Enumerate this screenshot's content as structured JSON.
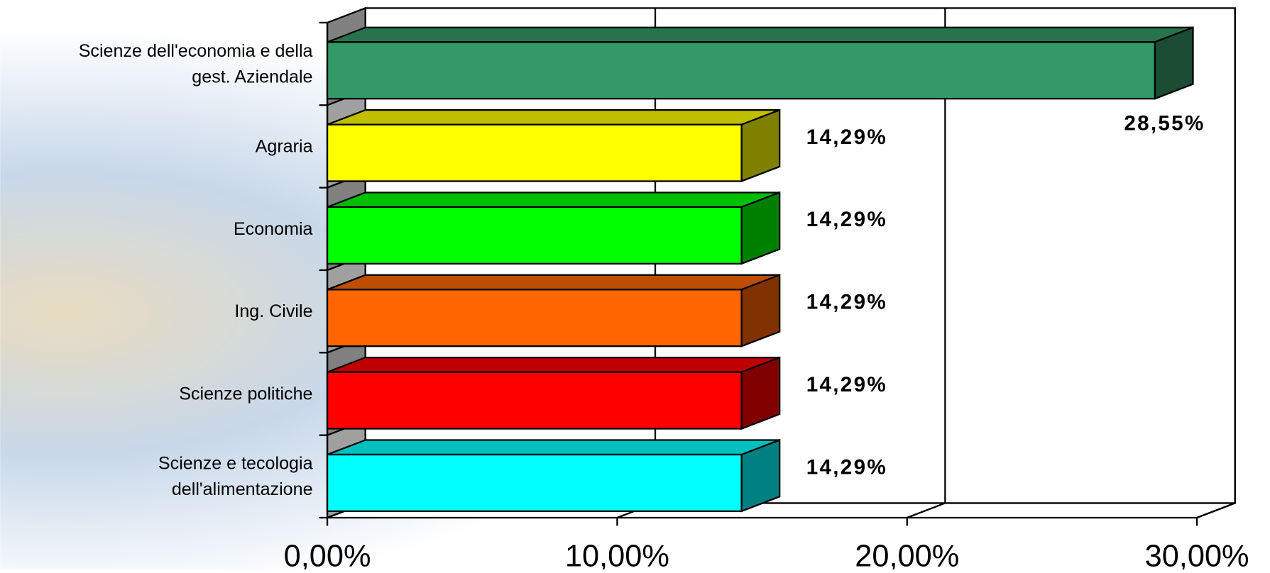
{
  "chart_data": {
    "type": "bar",
    "orientation": "horizontal",
    "three_d": true,
    "categories": [
      "Scienze dell'economia e della gest. Aziendale",
      "Agraria",
      "Economia",
      "Ing. Civile",
      "Scienze politiche",
      "Scienze e tecologia dell'alimentazione"
    ],
    "values": [
      28.55,
      14.29,
      14.29,
      14.29,
      14.29,
      14.29
    ],
    "value_labels": [
      "28,55%",
      "14,29%",
      "14,29%",
      "14,29%",
      "14,29%",
      "14,29%"
    ],
    "colors": [
      "#339966",
      "#ffff00",
      "#00ff00",
      "#ff6600",
      "#ff0000",
      "#00ffff"
    ],
    "xlim": [
      0,
      30
    ],
    "xticks": [
      {
        "value": 0,
        "label": "0,00%"
      },
      {
        "value": 10,
        "label": "10,00%"
      },
      {
        "value": 20,
        "label": "20,00%"
      },
      {
        "value": 30,
        "label": "30,00%"
      }
    ],
    "grid": true
  }
}
